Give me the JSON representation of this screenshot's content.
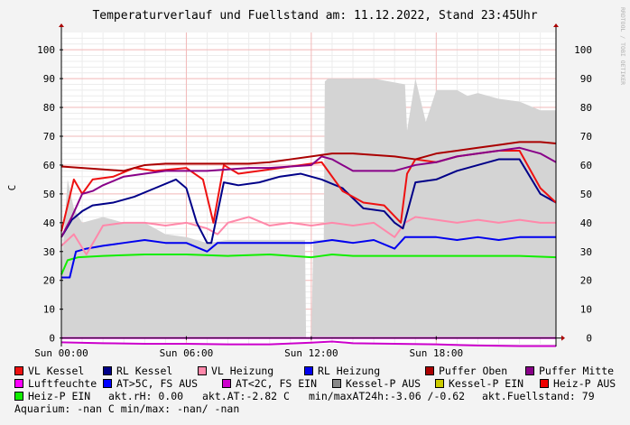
{
  "chart_data": {
    "type": "area",
    "title": "Temperaturverlauf und Fuellstand am: 11.12.2022, Stand 23:45Uhr",
    "ylabel": "C",
    "watermark": "RRDTOOL / TOBI OETIKER",
    "ylim": [
      -2,
      106
    ],
    "y_ticks": [
      0,
      10,
      20,
      30,
      40,
      50,
      60,
      70,
      80,
      90,
      100
    ],
    "y_tick_labels": [
      "0",
      "10",
      "20",
      "30",
      "40",
      "50",
      "60",
      "70",
      "80",
      "90",
      "100"
    ],
    "x_range_hours": [
      0,
      23.75
    ],
    "x_ticks_hours": [
      0,
      6,
      12,
      18
    ],
    "x_tick_labels": [
      "Sun 00:00",
      "Sun 06:00",
      "Sun 12:00",
      "Sun 18:00"
    ],
    "grid": true,
    "legend_position": "bottom",
    "series": [
      {
        "name": "VL Kessel",
        "color": "#ee1111",
        "x": [
          0,
          0.3,
          0.6,
          1.0,
          1.5,
          2.5,
          3.5,
          4.5,
          6.0,
          6.8,
          7.3,
          7.8,
          8.5,
          9.5,
          10.5,
          11.5,
          12.5,
          13.5,
          14.5,
          15.5,
          16.3,
          16.6,
          17.0,
          18.0,
          19.0,
          20.0,
          21.0,
          22.0,
          23.0,
          23.75
        ],
        "y": [
          37,
          46,
          55,
          50,
          55,
          56,
          59,
          58,
          59,
          55,
          40,
          60,
          57,
          58,
          59,
          60,
          61,
          51,
          47,
          46,
          40,
          57,
          62,
          61,
          63,
          64,
          65,
          65,
          52,
          47
        ]
      },
      {
        "name": "RL Kessel",
        "color": "#000088",
        "x": [
          0,
          0.5,
          1.0,
          1.5,
          2.5,
          3.5,
          4.5,
          5.5,
          6.0,
          6.5,
          7.0,
          7.2,
          7.8,
          8.5,
          9.5,
          10.5,
          11.5,
          12.5,
          13.5,
          14.5,
          15.5,
          16.0,
          16.4,
          17.0,
          18.0,
          19.0,
          20.0,
          21.0,
          22.0,
          23.0,
          23.75
        ],
        "y": [
          35,
          41,
          44,
          46,
          47,
          49,
          52,
          55,
          52,
          40,
          33,
          33,
          54,
          53,
          54,
          56,
          57,
          55,
          52,
          45,
          44,
          40,
          38,
          54,
          55,
          58,
          60,
          62,
          62,
          50,
          47
        ]
      },
      {
        "name": "VL Heizung",
        "color": "#ff88aa",
        "x": [
          0,
          0.6,
          1.2,
          2.0,
          3.0,
          4.0,
          5.0,
          6.0,
          7.0,
          7.5,
          8.0,
          9.0,
          10.0,
          11.0,
          12.0,
          13.0,
          14.0,
          15.0,
          16.0,
          16.5,
          17.0,
          18.0,
          19.0,
          20.0,
          21.0,
          22.0,
          23.0,
          23.75
        ],
        "y": [
          32,
          36,
          29,
          39,
          40,
          40,
          39,
          40,
          38,
          36,
          40,
          42,
          39,
          40,
          39,
          40,
          39,
          40,
          35,
          40,
          42,
          41,
          40,
          41,
          40,
          41,
          40,
          40
        ]
      },
      {
        "name": "RL Heizung",
        "color": "#0000ee",
        "x": [
          0,
          0.4,
          0.7,
          1.2,
          2.0,
          3.0,
          4.0,
          5.0,
          6.0,
          7.0,
          7.5,
          8.0,
          9.0,
          10.0,
          11.0,
          12.0,
          13.0,
          14.0,
          15.0,
          16.0,
          16.5,
          17.0,
          18.0,
          19.0,
          20.0,
          21.0,
          22.0,
          23.0,
          23.75
        ],
        "y": [
          21,
          21,
          30,
          31,
          32,
          33,
          34,
          33,
          33,
          30,
          33,
          33,
          33,
          33,
          33,
          33,
          34,
          33,
          34,
          31,
          35,
          35,
          35,
          34,
          35,
          34,
          35,
          35,
          35
        ]
      },
      {
        "name": "Puffer Oben",
        "color": "#aa0000",
        "x": [
          0,
          1.0,
          2.0,
          3.0,
          4.0,
          5.0,
          6.0,
          7.0,
          8.0,
          9.0,
          10.0,
          11.0,
          12.0,
          13.0,
          14.0,
          15.0,
          16.0,
          17.0,
          18.0,
          19.0,
          20.0,
          21.0,
          22.0,
          23.0,
          23.75
        ],
        "y": [
          59.5,
          59,
          58.5,
          58,
          60,
          60.5,
          60.5,
          60.5,
          60.5,
          60.5,
          61,
          62,
          63,
          64,
          64,
          63.5,
          63,
          62,
          64,
          65,
          66,
          67,
          68,
          68,
          67.5
        ]
      },
      {
        "name": "Puffer Mitte",
        "color": "#880088",
        "x": [
          0,
          0.5,
          1.0,
          1.5,
          2.0,
          3.0,
          4.0,
          5.0,
          6.0,
          7.0,
          8.0,
          9.0,
          10.0,
          11.0,
          12.0,
          12.5,
          13.0,
          14.0,
          15.0,
          16.0,
          17.0,
          18.0,
          19.0,
          20.0,
          21.0,
          22.0,
          23.0,
          23.75
        ],
        "y": [
          35,
          42,
          50,
          51,
          53,
          56,
          57,
          58,
          58,
          58,
          58.5,
          59,
          59,
          59.5,
          60,
          63,
          62,
          58,
          58,
          58,
          60,
          61,
          63,
          64,
          65,
          66,
          64,
          61
        ]
      },
      {
        "name": "Luftfeuchte",
        "color": "#ff00ff",
        "x": [
          0,
          23.75
        ],
        "y": [
          0,
          0
        ]
      },
      {
        "name": "AT>5C, FS AUS",
        "color": "#0000ff",
        "x": [],
        "y": []
      },
      {
        "name": "AT<2C, FS EIN",
        "color": "#cc00cc",
        "x": [
          0,
          2,
          4,
          6,
          8,
          10,
          12,
          13,
          14,
          16,
          18,
          20,
          22,
          23.75
        ],
        "y": [
          -1.5,
          -1.8,
          -2,
          -2,
          -2.2,
          -2.2,
          -1.6,
          -1.2,
          -1.8,
          -2,
          -2.2,
          -2.6,
          -2.8,
          -2.8
        ]
      },
      {
        "name": "Kessel-P AUS",
        "color": "#888888",
        "x": [],
        "y": []
      },
      {
        "name": "Kessel-P EIN",
        "color": "#cccc00",
        "x": [],
        "y": []
      },
      {
        "name": "Heiz-P AUS",
        "color": "#ee0000",
        "x": [],
        "y": []
      },
      {
        "name": "Heiz-P EIN",
        "color": "#11ee00",
        "x": [
          0,
          0.3,
          0.8,
          2.0,
          4.0,
          6.0,
          8.0,
          10.0,
          12.0,
          12.5,
          13.0,
          14.0,
          16.0,
          18.0,
          20.0,
          22.0,
          23.75
        ],
        "y": [
          22,
          27,
          28,
          28.5,
          29,
          29,
          28.5,
          29,
          28,
          28.5,
          29,
          28.5,
          28.5,
          28.5,
          28.5,
          28.5,
          28
        ]
      }
    ],
    "fuellstand_area": {
      "color": "#d4d4d4",
      "x": [
        0,
        0.3,
        0.6,
        1.0,
        2.0,
        3.0,
        4.0,
        5.0,
        6.0,
        7.0,
        8.0,
        9.0,
        10.0,
        11.0,
        11.7,
        11.75,
        12.0,
        12.1,
        12.6,
        12.65,
        12.8,
        13.0,
        15.0,
        16.5,
        16.6,
        17.0,
        17.5,
        18.0,
        19.0,
        19.5,
        20.0,
        21.0,
        22.0,
        23.0,
        23.75
      ],
      "y": [
        24,
        55,
        45,
        40,
        42,
        40,
        40,
        36,
        35,
        33,
        34,
        34,
        34,
        34,
        34,
        0,
        0,
        34,
        34,
        89,
        90,
        90,
        90,
        88,
        72,
        90,
        75,
        86,
        86,
        84,
        85,
        83,
        82,
        79,
        79
      ]
    }
  },
  "info": {
    "rh": "akt.rH: 0.00",
    "at": "akt.AT:-2.82 C",
    "minmax": "min/maxAT24h:-3.06 /-0.62",
    "fuellstand": "akt.Fuellstand:   79",
    "aquarium": "Aquarium: -nan C  min/max: -nan/ -nan"
  }
}
